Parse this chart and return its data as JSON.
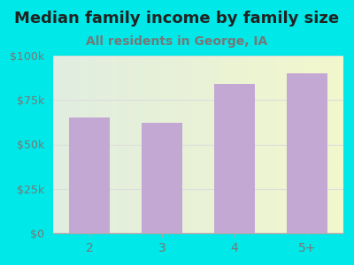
{
  "title": "Median family income by family size",
  "subtitle": "All residents in George, IA",
  "categories": [
    "2",
    "3",
    "4",
    "5+"
  ],
  "values": [
    65000,
    62000,
    84000,
    90000
  ],
  "bar_color": "#c4a8d4",
  "title_fontsize": 13,
  "subtitle_fontsize": 10,
  "subtitle_color": "#777777",
  "title_color": "#222222",
  "background_outer": "#00e8e8",
  "ylim": [
    0,
    100000
  ],
  "yticks": [
    0,
    25000,
    50000,
    75000,
    100000
  ],
  "ytick_labels": [
    "$0",
    "$25k",
    "$50k",
    "$75k",
    "$100k"
  ],
  "tick_color": "#777777",
  "grid_color": "#dddddd",
  "plot_bg_left": "#e2f0e2",
  "plot_bg_right": "#f5f5e0"
}
